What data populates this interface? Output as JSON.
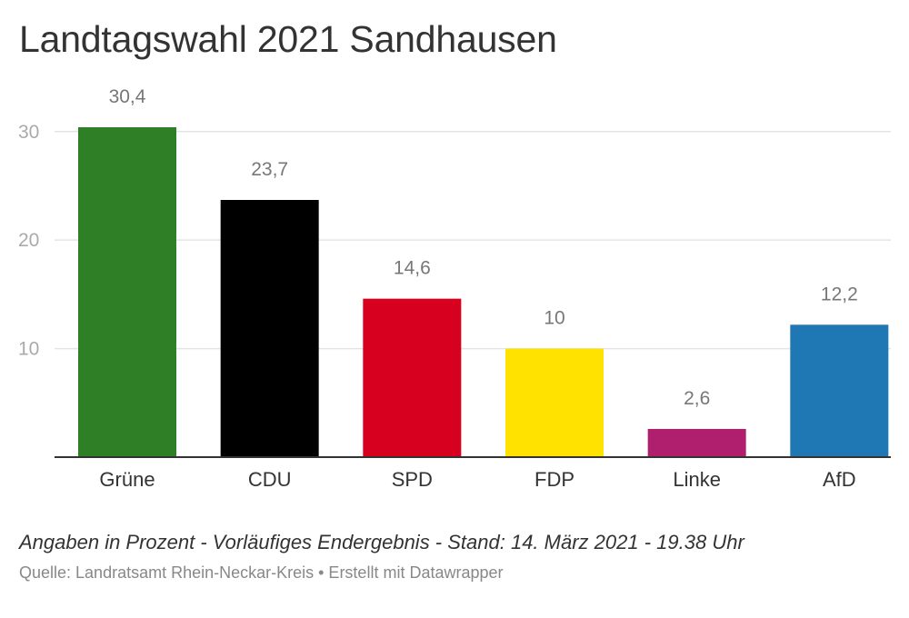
{
  "chart_data": {
    "type": "bar",
    "title": "Landtagswahl 2021 Sandhausen",
    "categories": [
      "Grüne",
      "CDU",
      "SPD",
      "FDP",
      "Linke",
      "AfD"
    ],
    "values": [
      30.4,
      23.7,
      14.6,
      10,
      2.6,
      12.2
    ],
    "value_labels": [
      "30,4",
      "23,7",
      "14,6",
      "10",
      "2,6",
      "12,2"
    ],
    "colors": [
      "#2e7f25",
      "#000000",
      "#d8001f",
      "#ffe200",
      "#b01f6e",
      "#1f77b4"
    ],
    "yticks": [
      10,
      20,
      30
    ],
    "ylim": [
      0,
      30.4
    ],
    "grid": true,
    "xlabel": "",
    "ylabel": ""
  },
  "notes": "Angaben in Prozent - Vorläufiges Endergebnis - Stand: 14. März 2021 - 19.38 Uhr",
  "source": "Quelle: Landratsamt Rhein-Neckar-Kreis • Erstellt mit Datawrapper"
}
